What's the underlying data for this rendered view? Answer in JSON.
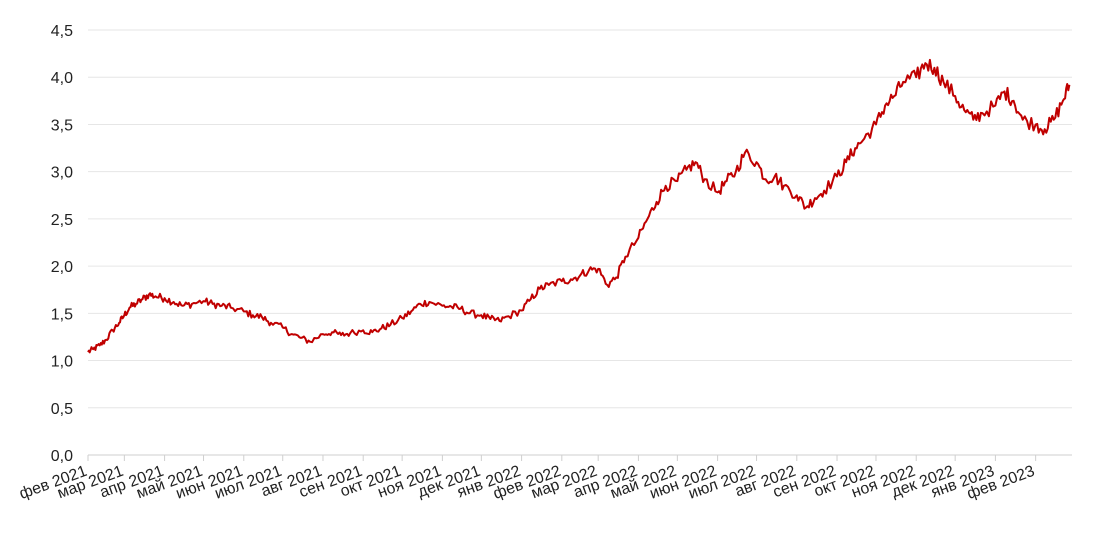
{
  "chart_data": {
    "type": "line",
    "title": "",
    "xlabel": "",
    "ylabel": "",
    "ylim": [
      0,
      4.5
    ],
    "yticks": [
      "0,0",
      "0,5",
      "1,0",
      "1,5",
      "2,0",
      "2,5",
      "3,0",
      "3,5",
      "4,0",
      "4,5"
    ],
    "xticks": [
      "фев 2021",
      "мар 2021",
      "апр 2021",
      "май 2021",
      "июн 2021",
      "июл 2021",
      "авг 2021",
      "сен 2021",
      "окт 2021",
      "ноя 2021",
      "дек 2021",
      "янв 2022",
      "фев 2022",
      "мар 2022",
      "апр 2022",
      "май 2022",
      "июн 2022",
      "июл 2022",
      "авг 2022",
      "сен 2022",
      "окт 2022",
      "ноя 2022",
      "дек 2022",
      "янв 2023",
      "фев 2023"
    ],
    "grid": true,
    "line_color": "#c00000",
    "series": [
      {
        "x": [
          "2021-02-01",
          "2021-02-05",
          "2021-02-10",
          "2021-02-15",
          "2021-02-20",
          "2021-02-25",
          "2021-03-01",
          "2021-03-05",
          "2021-03-10",
          "2021-03-15",
          "2021-03-20",
          "2021-03-25",
          "2021-04-01",
          "2021-04-08",
          "2021-04-15",
          "2021-04-22",
          "2021-05-01",
          "2021-05-08",
          "2021-05-15",
          "2021-05-22",
          "2021-06-01",
          "2021-06-08",
          "2021-06-15",
          "2021-06-22",
          "2021-07-01",
          "2021-07-08",
          "2021-07-15",
          "2021-07-22",
          "2021-08-01",
          "2021-08-08",
          "2021-08-15",
          "2021-08-22",
          "2021-09-01",
          "2021-09-08",
          "2021-09-15",
          "2021-09-22",
          "2021-10-01",
          "2021-10-08",
          "2021-10-15",
          "2021-10-22",
          "2021-11-01",
          "2021-11-08",
          "2021-11-15",
          "2021-11-22",
          "2021-12-01",
          "2021-12-08",
          "2021-12-15",
          "2021-12-22",
          "2022-01-01",
          "2022-01-08",
          "2022-01-15",
          "2022-01-22",
          "2022-02-01",
          "2022-02-08",
          "2022-02-15",
          "2022-02-22",
          "2022-03-01",
          "2022-03-08",
          "2022-03-15",
          "2022-03-22",
          "2022-04-01",
          "2022-04-08",
          "2022-04-15",
          "2022-04-22",
          "2022-05-01",
          "2022-05-08",
          "2022-05-15",
          "2022-05-22",
          "2022-06-01",
          "2022-06-08",
          "2022-06-15",
          "2022-06-22",
          "2022-07-01",
          "2022-07-08",
          "2022-07-15",
          "2022-07-22",
          "2022-08-01",
          "2022-08-08",
          "2022-08-15",
          "2022-08-22",
          "2022-09-01",
          "2022-09-08",
          "2022-09-15",
          "2022-09-22",
          "2022-10-01",
          "2022-10-08",
          "2022-10-15",
          "2022-10-22",
          "2022-11-01",
          "2022-11-08",
          "2022-11-15",
          "2022-11-22",
          "2022-12-01",
          "2022-12-08",
          "2022-12-15",
          "2022-12-22",
          "2023-01-01",
          "2023-01-08",
          "2023-01-15",
          "2023-01-22",
          "2023-02-01",
          "2023-02-08",
          "2023-02-15",
          "2023-02-22",
          "2023-02-27"
        ],
        "values": [
          1.09,
          1.12,
          1.16,
          1.22,
          1.32,
          1.4,
          1.48,
          1.56,
          1.6,
          1.65,
          1.7,
          1.68,
          1.66,
          1.62,
          1.58,
          1.6,
          1.63,
          1.6,
          1.58,
          1.56,
          1.52,
          1.48,
          1.46,
          1.4,
          1.35,
          1.28,
          1.24,
          1.2,
          1.28,
          1.3,
          1.27,
          1.29,
          1.32,
          1.3,
          1.34,
          1.38,
          1.45,
          1.52,
          1.6,
          1.62,
          1.58,
          1.57,
          1.55,
          1.5,
          1.48,
          1.44,
          1.42,
          1.47,
          1.53,
          1.65,
          1.76,
          1.8,
          1.84,
          1.86,
          1.9,
          1.96,
          1.97,
          1.8,
          1.88,
          2.1,
          2.3,
          2.5,
          2.68,
          2.85,
          2.9,
          3.02,
          3.1,
          2.92,
          2.78,
          2.9,
          3.0,
          3.2,
          3.1,
          2.92,
          2.95,
          2.85,
          2.75,
          2.62,
          2.72,
          2.8,
          2.95,
          3.1,
          3.25,
          3.35,
          3.5,
          3.7,
          3.8,
          3.95,
          4.0,
          4.15,
          4.1,
          3.95,
          3.8,
          3.65,
          3.55,
          3.62,
          3.7,
          3.85,
          3.75,
          3.55,
          3.5,
          3.45,
          3.55,
          3.75,
          3.92
        ]
      }
    ]
  }
}
